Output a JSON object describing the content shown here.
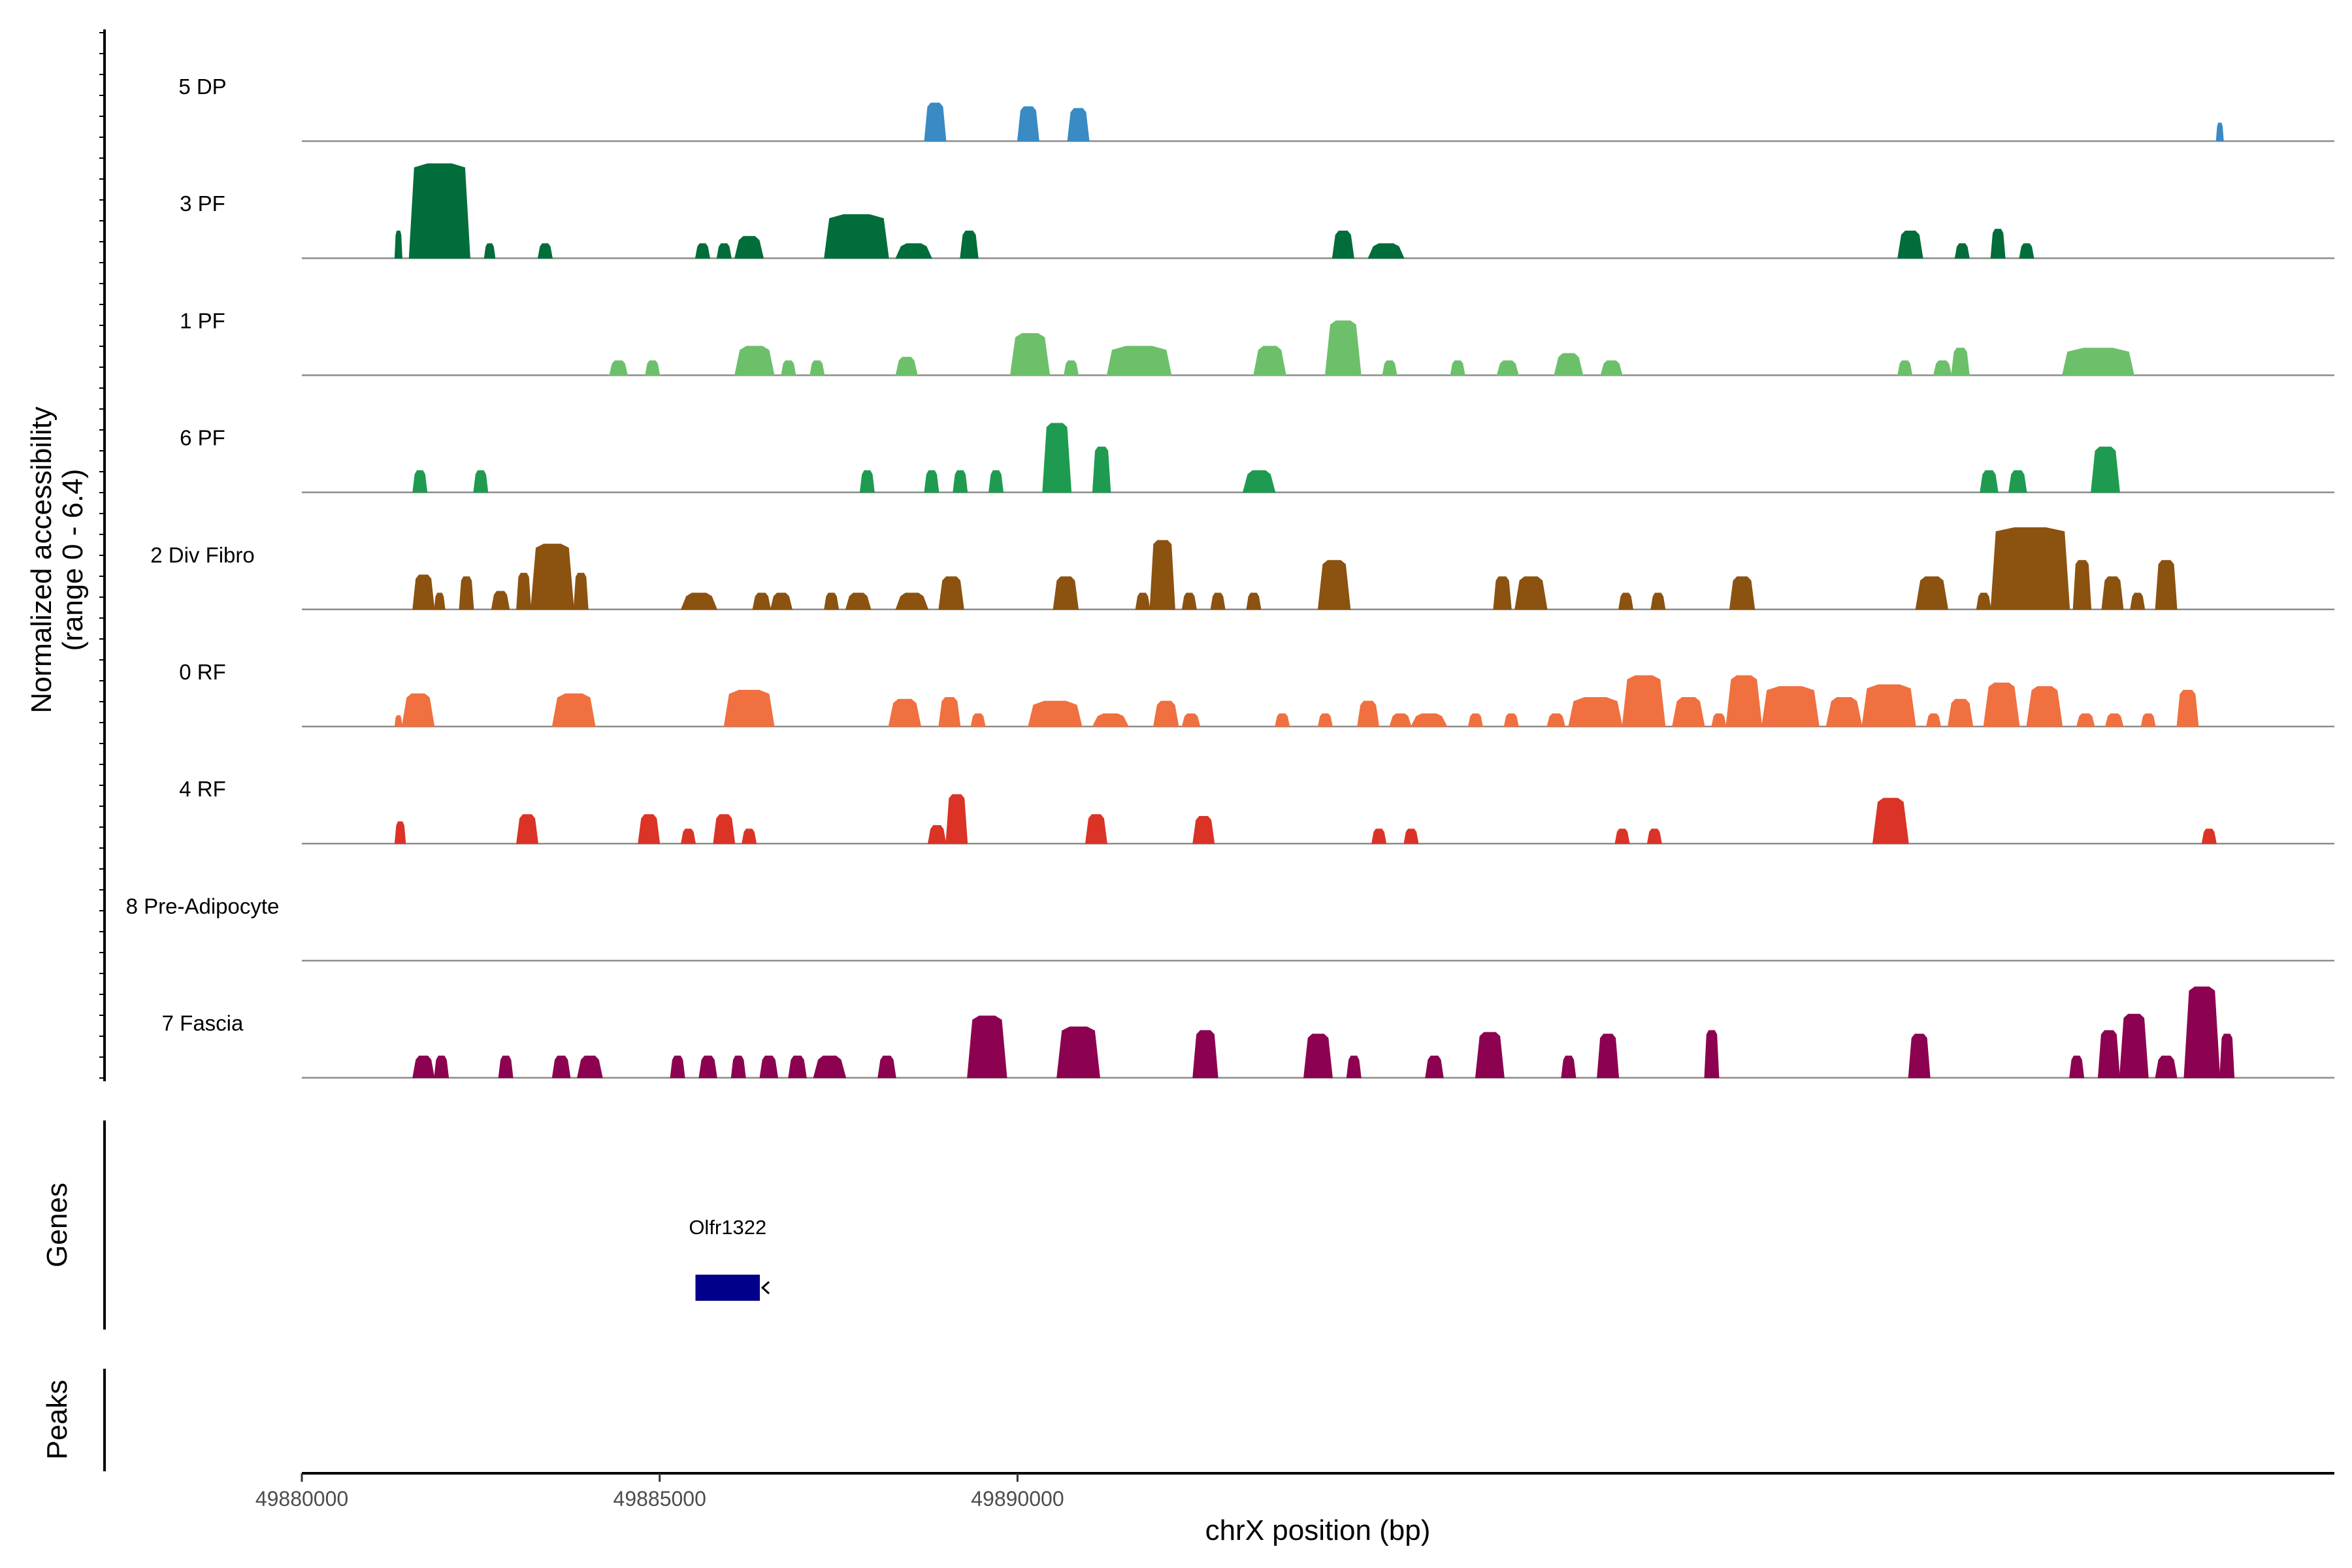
{
  "chart_data": {
    "type": "area",
    "title": "",
    "ylabel": "Normalized accessibility (range 0 - 6.4)",
    "ylabel_line1": "Normalized accessibility",
    "ylabel_line2": "(range 0 - 6.4)",
    "y_range": [
      0,
      6.4
    ],
    "xlabel": "chrX position (bp)",
    "xlim": [
      49880000,
      49908400
    ],
    "xticks": [
      49880000,
      49885000,
      49890000
    ],
    "xtick_labels": [
      "49880000",
      "49885000",
      "49890000"
    ],
    "genes_label": "Genes",
    "peaks_label": "Peaks",
    "genes": [
      {
        "name": "Olfr1322",
        "start": 49885500,
        "end": 49886400,
        "strand": "-",
        "color": "#00008B"
      }
    ],
    "tracks": [
      {
        "name": "5 DP",
        "color": "#3A8AC4",
        "peaks": [
          {
            "s": 49888700,
            "e": 49889000,
            "h": 2.1
          },
          {
            "s": 49890000,
            "e": 49890300,
            "h": 1.9
          },
          {
            "s": 49890700,
            "e": 49891000,
            "h": 1.8
          },
          {
            "s": 49906750,
            "e": 49906850,
            "h": 1.0
          }
        ]
      },
      {
        "name": "3 PF",
        "color": "#006D3A",
        "peaks": [
          {
            "s": 49881300,
            "e": 49881400,
            "h": 1.5
          },
          {
            "s": 49881500,
            "e": 49882350,
            "h": 5.2
          },
          {
            "s": 49882550,
            "e": 49882700,
            "h": 0.8
          },
          {
            "s": 49883300,
            "e": 49883500,
            "h": 0.8
          },
          {
            "s": 49885500,
            "e": 49885700,
            "h": 0.8
          },
          {
            "s": 49885800,
            "e": 49886000,
            "h": 0.8
          },
          {
            "s": 49886050,
            "e": 49886450,
            "h": 1.2
          },
          {
            "s": 49887300,
            "e": 49888200,
            "h": 2.4
          },
          {
            "s": 49888300,
            "e": 49888800,
            "h": 0.8
          },
          {
            "s": 49889200,
            "e": 49889450,
            "h": 1.5
          },
          {
            "s": 49894400,
            "e": 49894700,
            "h": 1.5
          },
          {
            "s": 49894900,
            "e": 49895400,
            "h": 0.8
          },
          {
            "s": 49902300,
            "e": 49902650,
            "h": 1.5
          },
          {
            "s": 49903100,
            "e": 49903300,
            "h": 0.8
          },
          {
            "s": 49903600,
            "e": 49903800,
            "h": 1.6
          },
          {
            "s": 49904000,
            "e": 49904200,
            "h": 0.8
          }
        ]
      },
      {
        "name": "1 PF",
        "color": "#6CC06A",
        "peaks": [
          {
            "s": 49884300,
            "e": 49884550,
            "h": 0.8
          },
          {
            "s": 49884800,
            "e": 49885000,
            "h": 0.8
          },
          {
            "s": 49886050,
            "e": 49886600,
            "h": 1.6
          },
          {
            "s": 49886700,
            "e": 49886900,
            "h": 0.8
          },
          {
            "s": 49887100,
            "e": 49887300,
            "h": 0.8
          },
          {
            "s": 49888300,
            "e": 49888600,
            "h": 1.0
          },
          {
            "s": 49889900,
            "e": 49890450,
            "h": 2.3
          },
          {
            "s": 49890650,
            "e": 49890850,
            "h": 0.8
          },
          {
            "s": 49891250,
            "e": 49892150,
            "h": 1.6
          },
          {
            "s": 49893300,
            "e": 49893750,
            "h": 1.6
          },
          {
            "s": 49894300,
            "e": 49894800,
            "h": 3.0
          },
          {
            "s": 49895100,
            "e": 49895300,
            "h": 0.8
          },
          {
            "s": 49896050,
            "e": 49896250,
            "h": 0.8
          },
          {
            "s": 49896700,
            "e": 49897000,
            "h": 0.8
          },
          {
            "s": 49897500,
            "e": 49897900,
            "h": 1.2
          },
          {
            "s": 49898150,
            "e": 49898450,
            "h": 0.8
          },
          {
            "s": 49902300,
            "e": 49902500,
            "h": 0.8
          },
          {
            "s": 49902800,
            "e": 49903050,
            "h": 0.8
          },
          {
            "s": 49903050,
            "e": 49903300,
            "h": 1.5
          },
          {
            "s": 49904600,
            "e": 49905600,
            "h": 1.5
          }
        ]
      },
      {
        "name": "6 PF",
        "color": "#1E9B50",
        "peaks": [
          {
            "s": 49881550,
            "e": 49881750,
            "h": 1.2
          },
          {
            "s": 49882400,
            "e": 49882600,
            "h": 1.2
          },
          {
            "s": 49887800,
            "e": 49888000,
            "h": 1.2
          },
          {
            "s": 49888700,
            "e": 49888900,
            "h": 1.2
          },
          {
            "s": 49889100,
            "e": 49889300,
            "h": 1.2
          },
          {
            "s": 49889600,
            "e": 49889800,
            "h": 1.2
          },
          {
            "s": 49890350,
            "e": 49890750,
            "h": 3.8
          },
          {
            "s": 49891050,
            "e": 49891300,
            "h": 2.5
          },
          {
            "s": 49893150,
            "e": 49893600,
            "h": 1.2
          },
          {
            "s": 49903450,
            "e": 49903700,
            "h": 1.2
          },
          {
            "s": 49903850,
            "e": 49904100,
            "h": 1.2
          },
          {
            "s": 49905000,
            "e": 49905400,
            "h": 2.5
          }
        ]
      },
      {
        "name": "2 Div Fibro",
        "color": "#8B5210",
        "peaks": [
          {
            "s": 49881550,
            "e": 49881850,
            "h": 1.9
          },
          {
            "s": 49881850,
            "e": 49882000,
            "h": 0.9
          },
          {
            "s": 49882200,
            "e": 49882400,
            "h": 1.8
          },
          {
            "s": 49882650,
            "e": 49882900,
            "h": 1.0
          },
          {
            "s": 49883000,
            "e": 49883200,
            "h": 2.0
          },
          {
            "s": 49883200,
            "e": 49883800,
            "h": 3.6
          },
          {
            "s": 49883800,
            "e": 49884000,
            "h": 2.0
          },
          {
            "s": 49885300,
            "e": 49885800,
            "h": 0.9
          },
          {
            "s": 49886300,
            "e": 49886550,
            "h": 0.9
          },
          {
            "s": 49886550,
            "e": 49886850,
            "h": 0.9
          },
          {
            "s": 49887300,
            "e": 49887500,
            "h": 0.9
          },
          {
            "s": 49887600,
            "e": 49887950,
            "h": 0.9
          },
          {
            "s": 49888300,
            "e": 49888750,
            "h": 0.9
          },
          {
            "s": 49888900,
            "e": 49889250,
            "h": 1.8
          },
          {
            "s": 49890500,
            "e": 49890850,
            "h": 1.8
          },
          {
            "s": 49891650,
            "e": 49891850,
            "h": 0.9
          },
          {
            "s": 49891850,
            "e": 49892200,
            "h": 3.8
          },
          {
            "s": 49892300,
            "e": 49892500,
            "h": 0.9
          },
          {
            "s": 49892700,
            "e": 49892900,
            "h": 0.9
          },
          {
            "s": 49893200,
            "e": 49893400,
            "h": 0.9
          },
          {
            "s": 49894200,
            "e": 49894650,
            "h": 2.7
          },
          {
            "s": 49896650,
            "e": 49896900,
            "h": 1.8
          },
          {
            "s": 49896950,
            "e": 49897400,
            "h": 1.8
          },
          {
            "s": 49898400,
            "e": 49898600,
            "h": 0.9
          },
          {
            "s": 49898850,
            "e": 49899050,
            "h": 0.9
          },
          {
            "s": 49899950,
            "e": 49900300,
            "h": 1.8
          },
          {
            "s": 49902550,
            "e": 49903000,
            "h": 1.8
          },
          {
            "s": 49903400,
            "e": 49903600,
            "h": 0.9
          },
          {
            "s": 49903600,
            "e": 49904700,
            "h": 4.5
          },
          {
            "s": 49904750,
            "e": 49905000,
            "h": 2.7
          },
          {
            "s": 49905150,
            "e": 49905450,
            "h": 1.8
          },
          {
            "s": 49905550,
            "e": 49905750,
            "h": 0.9
          },
          {
            "s": 49905900,
            "e": 49906200,
            "h": 2.7
          }
        ]
      },
      {
        "name": "0 RF",
        "color": "#F07040",
        "peaks": [
          {
            "s": 49881300,
            "e": 49881400,
            "h": 0.6
          },
          {
            "s": 49881400,
            "e": 49881850,
            "h": 1.8
          },
          {
            "s": 49883500,
            "e": 49884100,
            "h": 1.8
          },
          {
            "s": 49885900,
            "e": 49886600,
            "h": 2.0
          },
          {
            "s": 49888200,
            "e": 49888650,
            "h": 1.5
          },
          {
            "s": 49888900,
            "e": 49889200,
            "h": 1.6
          },
          {
            "s": 49889350,
            "e": 49889550,
            "h": 0.7
          },
          {
            "s": 49890150,
            "e": 49890900,
            "h": 1.4
          },
          {
            "s": 49891050,
            "e": 49891550,
            "h": 0.7
          },
          {
            "s": 49891900,
            "e": 49892250,
            "h": 1.4
          },
          {
            "s": 49892300,
            "e": 49892550,
            "h": 0.7
          },
          {
            "s": 49893600,
            "e": 49893800,
            "h": 0.7
          },
          {
            "s": 49894200,
            "e": 49894400,
            "h": 0.7
          },
          {
            "s": 49894750,
            "e": 49895050,
            "h": 1.4
          },
          {
            "s": 49895200,
            "e": 49895500,
            "h": 0.7
          },
          {
            "s": 49895500,
            "e": 49896000,
            "h": 0.7
          },
          {
            "s": 49896300,
            "e": 49896500,
            "h": 0.7
          },
          {
            "s": 49896800,
            "e": 49897000,
            "h": 0.7
          },
          {
            "s": 49897400,
            "e": 49897650,
            "h": 0.7
          },
          {
            "s": 49897700,
            "e": 49898450,
            "h": 1.6
          },
          {
            "s": 49898450,
            "e": 49899050,
            "h": 2.8
          },
          {
            "s": 49899150,
            "e": 49899600,
            "h": 1.6
          },
          {
            "s": 49899700,
            "e": 49899900,
            "h": 0.7
          },
          {
            "s": 49899900,
            "e": 49900400,
            "h": 2.8
          },
          {
            "s": 49900400,
            "e": 49901200,
            "h": 2.2
          },
          {
            "s": 49901300,
            "e": 49901800,
            "h": 1.6
          },
          {
            "s": 49901800,
            "e": 49902550,
            "h": 2.3
          },
          {
            "s": 49902700,
            "e": 49902900,
            "h": 0.7
          },
          {
            "s": 49903000,
            "e": 49903350,
            "h": 1.5
          },
          {
            "s": 49903500,
            "e": 49904000,
            "h": 2.4
          },
          {
            "s": 49904100,
            "e": 49904600,
            "h": 2.2
          },
          {
            "s": 49904800,
            "e": 49905050,
            "h": 0.7
          },
          {
            "s": 49905200,
            "e": 49905450,
            "h": 0.7
          },
          {
            "s": 49905700,
            "e": 49905900,
            "h": 0.7
          },
          {
            "s": 49906200,
            "e": 49906500,
            "h": 2.0
          }
        ]
      },
      {
        "name": "4 RF",
        "color": "#DB3326",
        "peaks": [
          {
            "s": 49881300,
            "e": 49881450,
            "h": 1.2
          },
          {
            "s": 49883000,
            "e": 49883300,
            "h": 1.6
          },
          {
            "s": 49884700,
            "e": 49885000,
            "h": 1.6
          },
          {
            "s": 49885300,
            "e": 49885500,
            "h": 0.8
          },
          {
            "s": 49885750,
            "e": 49886050,
            "h": 1.6
          },
          {
            "s": 49886150,
            "e": 49886350,
            "h": 0.8
          },
          {
            "s": 49888750,
            "e": 49889000,
            "h": 1.0
          },
          {
            "s": 49889000,
            "e": 49889300,
            "h": 2.7
          },
          {
            "s": 49890950,
            "e": 49891250,
            "h": 1.6
          },
          {
            "s": 49892450,
            "e": 49892750,
            "h": 1.5
          },
          {
            "s": 49894950,
            "e": 49895150,
            "h": 0.8
          },
          {
            "s": 49895400,
            "e": 49895600,
            "h": 0.8
          },
          {
            "s": 49898350,
            "e": 49898550,
            "h": 0.8
          },
          {
            "s": 49898800,
            "e": 49899000,
            "h": 0.8
          },
          {
            "s": 49901950,
            "e": 49902450,
            "h": 2.5
          },
          {
            "s": 49906550,
            "e": 49906750,
            "h": 0.8
          }
        ]
      },
      {
        "name": "8 Pre-Adipocyte",
        "color": "#8C8C8C",
        "peaks": []
      },
      {
        "name": "7 Fascia",
        "color": "#8C0250",
        "peaks": [
          {
            "s": 49881550,
            "e": 49881850,
            "h": 1.2
          },
          {
            "s": 49881850,
            "e": 49882050,
            "h": 1.2
          },
          {
            "s": 49882750,
            "e": 49882950,
            "h": 1.2
          },
          {
            "s": 49883500,
            "e": 49883750,
            "h": 1.2
          },
          {
            "s": 49883850,
            "e": 49884200,
            "h": 1.2
          },
          {
            "s": 49885150,
            "e": 49885350,
            "h": 1.2
          },
          {
            "s": 49885550,
            "e": 49885800,
            "h": 1.2
          },
          {
            "s": 49886000,
            "e": 49886200,
            "h": 1.2
          },
          {
            "s": 49886400,
            "e": 49886650,
            "h": 1.2
          },
          {
            "s": 49886800,
            "e": 49887050,
            "h": 1.2
          },
          {
            "s": 49887150,
            "e": 49887600,
            "h": 1.2
          },
          {
            "s": 49888050,
            "e": 49888300,
            "h": 1.2
          },
          {
            "s": 49889300,
            "e": 49889850,
            "h": 3.4
          },
          {
            "s": 49890550,
            "e": 49891150,
            "h": 2.8
          },
          {
            "s": 49892450,
            "e": 49892800,
            "h": 2.6
          },
          {
            "s": 49894000,
            "e": 49894400,
            "h": 2.4
          },
          {
            "s": 49894600,
            "e": 49894800,
            "h": 1.2
          },
          {
            "s": 49895700,
            "e": 49895950,
            "h": 1.2
          },
          {
            "s": 49896400,
            "e": 49896800,
            "h": 2.5
          },
          {
            "s": 49897600,
            "e": 49897800,
            "h": 1.2
          },
          {
            "s": 49898100,
            "e": 49898400,
            "h": 2.4
          },
          {
            "s": 49899600,
            "e": 49899800,
            "h": 2.6
          },
          {
            "s": 49902450,
            "e": 49902750,
            "h": 2.4
          },
          {
            "s": 49904700,
            "e": 49904900,
            "h": 1.2
          },
          {
            "s": 49905100,
            "e": 49905400,
            "h": 2.6
          },
          {
            "s": 49905400,
            "e": 49905800,
            "h": 3.5
          },
          {
            "s": 49905900,
            "e": 49906200,
            "h": 1.2
          },
          {
            "s": 49906300,
            "e": 49906800,
            "h": 5.0
          },
          {
            "s": 49906800,
            "e": 49907000,
            "h": 2.4
          }
        ]
      }
    ]
  }
}
